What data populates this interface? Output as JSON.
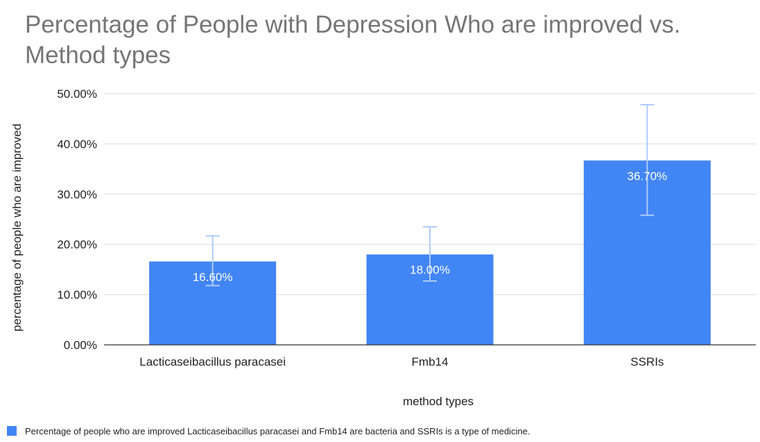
{
  "chart_data": {
    "type": "bar",
    "title": "Percentage of People with Depression Who are improved  vs. Method types",
    "xlabel": "method types",
    "ylabel": "percentage of people who are improved",
    "categories": [
      "Lacticaseibacillus paracasei",
      "Fmb14",
      "SSRIs"
    ],
    "series": [
      {
        "name": "Percentage of people who are improved  Lacticaseibacillus paracasei and Fmb14 are bacteria and SSRIs is a type of medicine.",
        "values": [
          16.6,
          18.0,
          36.7
        ],
        "data_labels": [
          "16.60%",
          "18.00%",
          "36.70%"
        ],
        "error_low": [
          11.8,
          12.7,
          25.8
        ],
        "error_high": [
          21.7,
          23.5,
          47.8
        ]
      }
    ],
    "ylim": [
      0,
      50
    ],
    "yticks": [
      0,
      10,
      20,
      30,
      40,
      50
    ],
    "ytick_labels": [
      "0.00%",
      "10.00%",
      "20.00%",
      "30.00%",
      "40.00%",
      "50.00%"
    ],
    "grid": true,
    "legend_position": "bottom-left",
    "colors": {
      "bar": "#4285f4",
      "error_bar": "#aecbfa",
      "grid": "#d9d9d9",
      "axis": "#333333",
      "title": "#757575"
    }
  }
}
